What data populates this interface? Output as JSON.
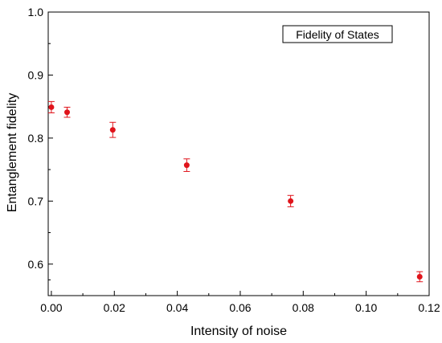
{
  "colors": {
    "point": "#e0141b",
    "axis": "#000000"
  },
  "chart_data": {
    "type": "scatter",
    "title": "",
    "xlabel": "Intensity of noise",
    "ylabel": "Entanglement fidelity",
    "xlim": [
      -0.001,
      0.12
    ],
    "ylim": [
      0.55,
      1.0
    ],
    "xticks": [
      0.0,
      0.02,
      0.04,
      0.06,
      0.08,
      0.1,
      0.12
    ],
    "xtick_labels": [
      "0.00",
      "0.02",
      "0.04",
      "0.06",
      "0.08",
      "0.10",
      "0.12"
    ],
    "yticks": [
      0.6,
      0.7,
      0.8,
      0.9,
      1.0
    ],
    "ytick_labels": [
      "0.6",
      "0.7",
      "0.8",
      "0.9",
      "1.0"
    ],
    "grid": false,
    "legend": {
      "text": "Fidelity of States",
      "position": "top-right"
    },
    "series": [
      {
        "x": [
          0.0,
          0.005,
          0.0195,
          0.043,
          0.076,
          0.117
        ],
        "y": [
          0.849,
          0.841,
          0.813,
          0.757,
          0.7,
          0.58
        ],
        "error": [
          0.009,
          0.008,
          0.012,
          0.01,
          0.009,
          0.008
        ]
      }
    ]
  }
}
